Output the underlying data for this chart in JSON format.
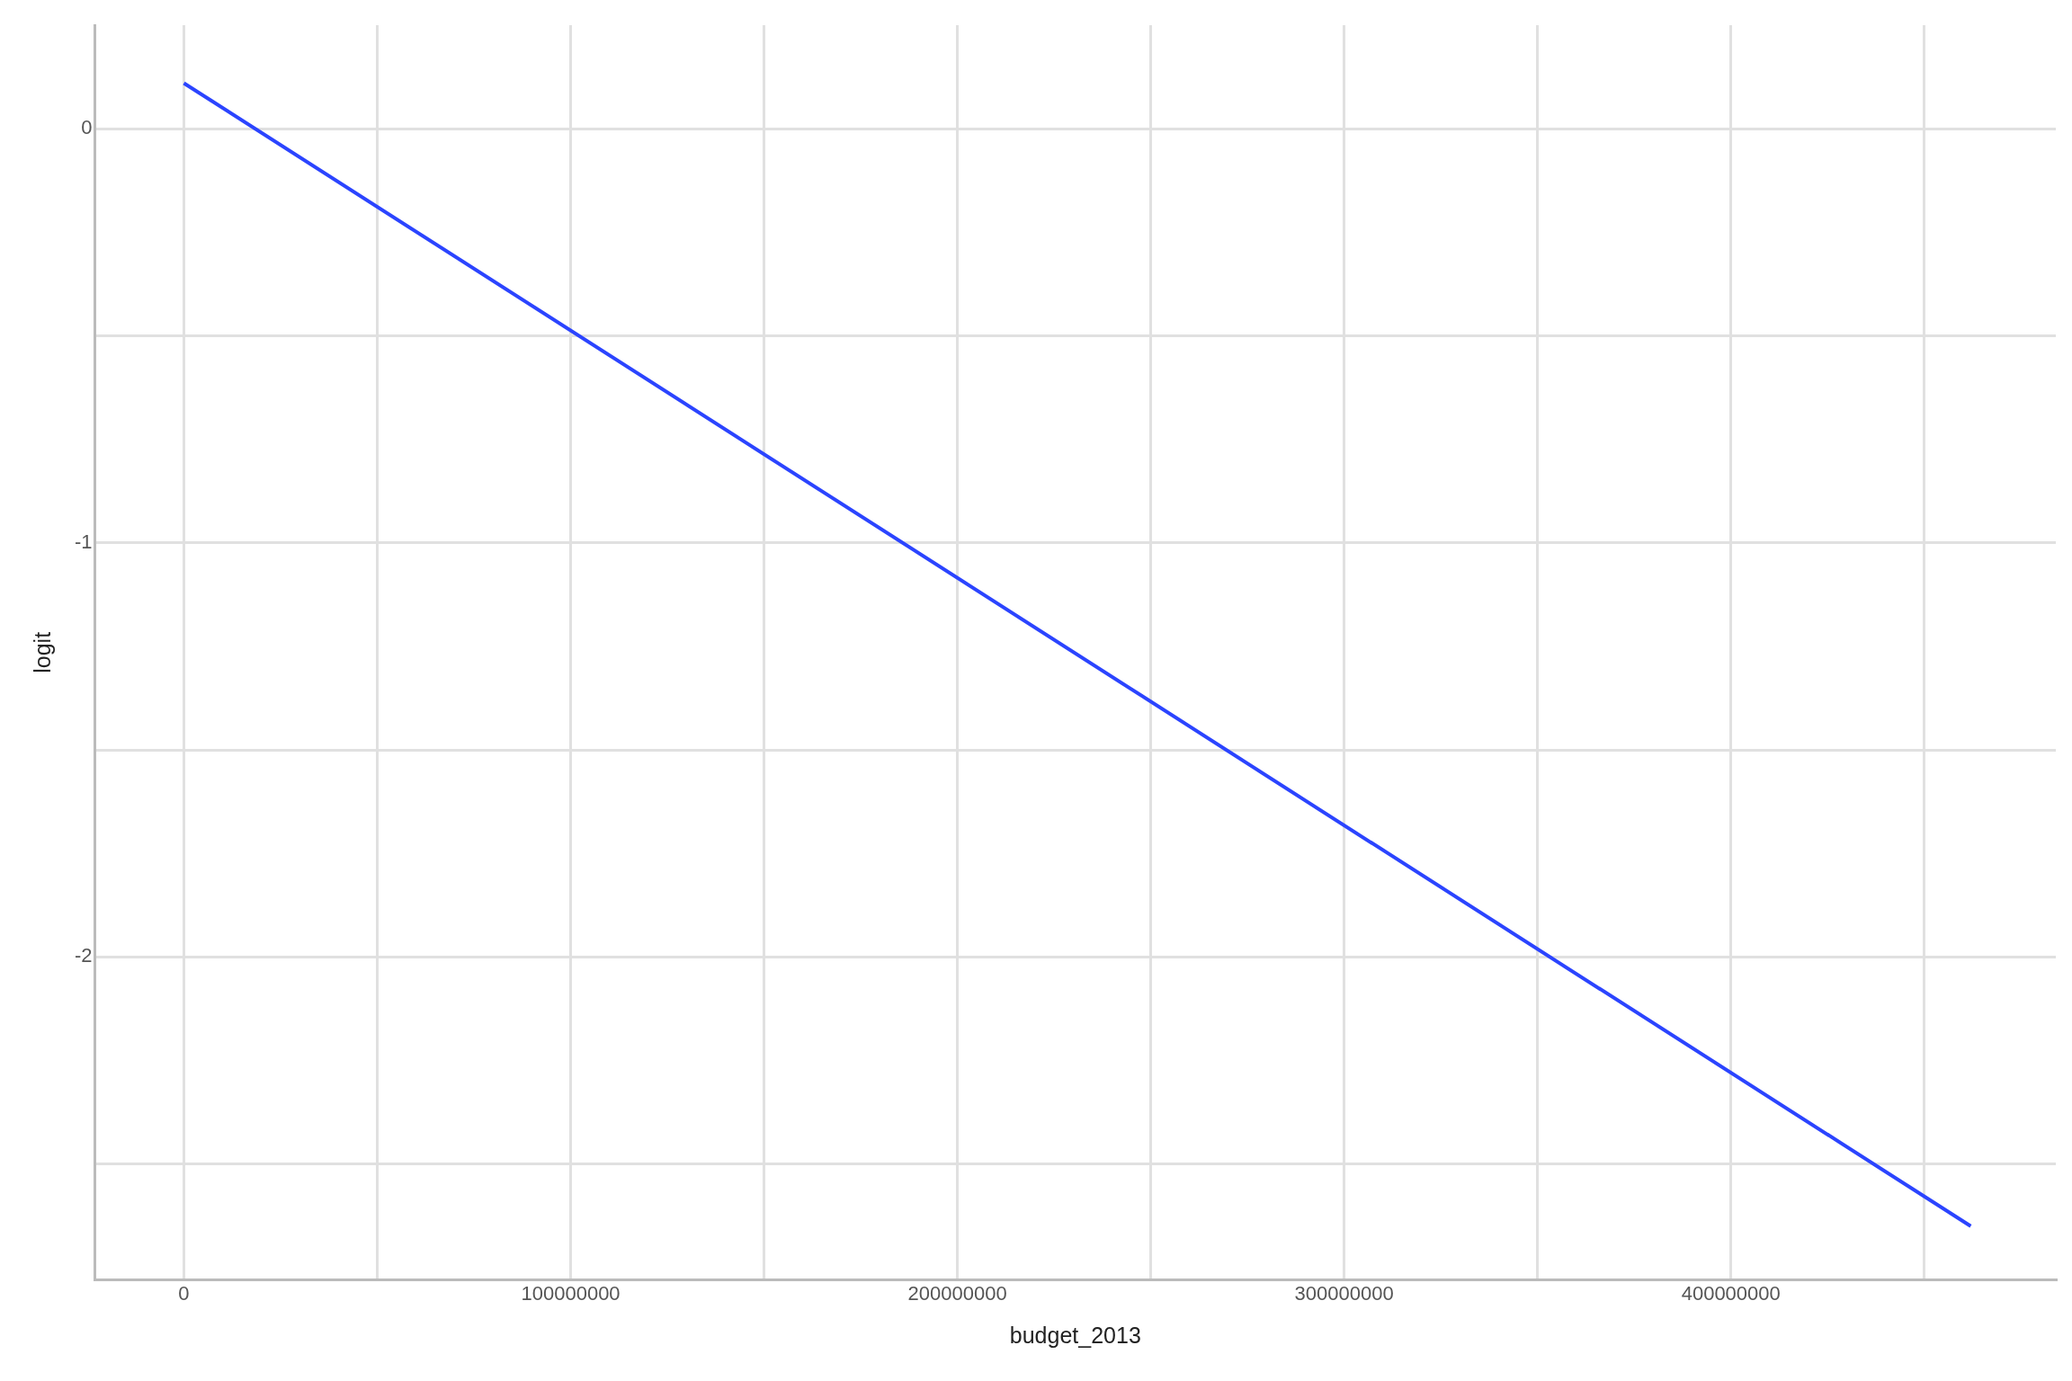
{
  "chart_data": {
    "type": "line",
    "xlabel": "budget_2013",
    "ylabel": "logit",
    "x": [
      0,
      462000000
    ],
    "series": [
      {
        "color": "#2b44ff",
        "values": [
          0.11,
          -2.65
        ]
      }
    ],
    "xlim": [
      -23000000,
      484000000
    ],
    "ylim": [
      -2.78,
      0.25
    ],
    "xticks": [
      0,
      {
        "value": 50000000,
        "label": null
      },
      100000000,
      {
        "value": 150000000,
        "label": null
      },
      200000000,
      {
        "value": 250000000,
        "label": null
      },
      300000000,
      {
        "value": 350000000,
        "label": null
      },
      400000000,
      {
        "value": 450000000,
        "label": null
      }
    ],
    "yticks": [
      {
        "value": -2.5,
        "label": null
      },
      -2,
      {
        "value": -1.5,
        "label": null
      },
      -1,
      {
        "value": -0.5,
        "label": null
      },
      0
    ],
    "grid": true,
    "legend": false,
    "marker": "none",
    "line_style": "solid"
  }
}
